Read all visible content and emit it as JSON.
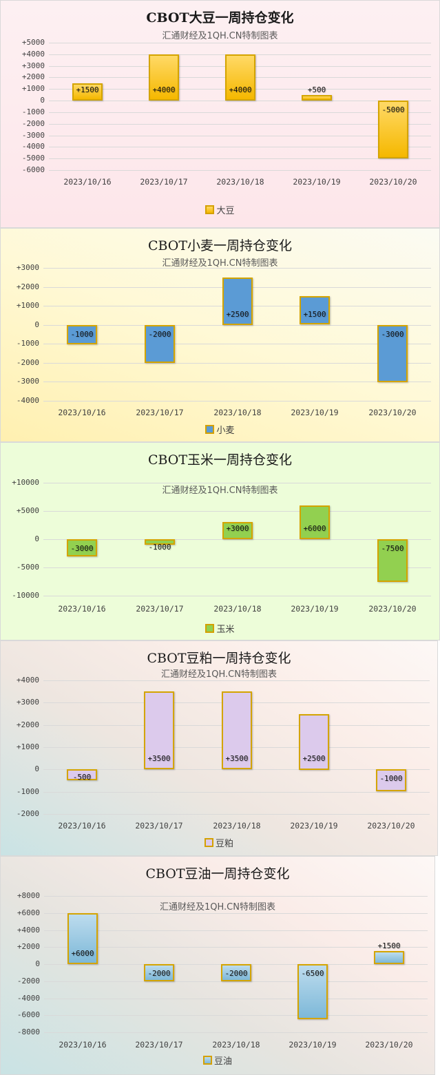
{
  "subtitle": "汇通财经及1QH.CN特制图表",
  "chart_data": [
    {
      "type": "bar",
      "title": "CBOT大豆一周持仓变化",
      "subtitle": "汇通财经及1QH.CN特制图表",
      "legend": "大豆",
      "categories": [
        "2023/10/16",
        "2023/10/17",
        "2023/10/18",
        "2023/10/19",
        "2023/10/20"
      ],
      "values": [
        1500,
        4000,
        4000,
        500,
        -5000
      ],
      "labels": [
        "+1500",
        "+4000",
        "+4000",
        "+500",
        "-5000"
      ],
      "yticks": [
        "+5000",
        "+4000",
        "+3000",
        "+2000",
        "+1000",
        "0",
        "-1000",
        "-2000",
        "-3000",
        "-4000",
        "-5000",
        "-6000"
      ],
      "ylim": [
        -6000,
        5000
      ],
      "grid": true,
      "legend_position": "bottom",
      "bar_color": "#ffc83d",
      "background": "#fde9ec"
    },
    {
      "type": "bar",
      "title": "CBOT小麦一周持仓变化",
      "subtitle": "汇通财经及1QH.CN特制图表",
      "legend": "小麦",
      "categories": [
        "2023/10/16",
        "2023/10/17",
        "2023/10/18",
        "2023/10/19",
        "2023/10/20"
      ],
      "values": [
        -1000,
        -2000,
        2500,
        1500,
        -3000
      ],
      "labels": [
        "-1000",
        "-2000",
        "+2500",
        "+1500",
        "-3000"
      ],
      "yticks": [
        "+3000",
        "+2000",
        "+1000",
        "0",
        "-1000",
        "-2000",
        "-3000",
        "-4000"
      ],
      "ylim": [
        -4000,
        3000
      ],
      "grid": true,
      "legend_position": "bottom",
      "bar_color": "#5b9bd5",
      "background": "#fff8d0"
    },
    {
      "type": "bar",
      "title": "CBOT玉米一周持仓变化",
      "subtitle": "汇通财经及1QH.CN特制图表",
      "legend": "玉米",
      "categories": [
        "2023/10/16",
        "2023/10/17",
        "2023/10/18",
        "2023/10/19",
        "2023/10/20"
      ],
      "values": [
        -3000,
        -1000,
        3000,
        6000,
        -7500
      ],
      "labels": [
        "-3000",
        "-1000",
        "+3000",
        "+6000",
        "-7500"
      ],
      "yticks": [
        "+10000",
        "+5000",
        "0",
        "-5000",
        "-10000"
      ],
      "ylim": [
        -10000,
        10000
      ],
      "grid": true,
      "legend_position": "bottom",
      "bar_color": "#92d050",
      "background": "#edfdd9"
    },
    {
      "type": "bar",
      "title": "CBOT豆粕一周持仓变化",
      "subtitle": "汇通财经及1QH.CN特制图表",
      "legend": "豆粕",
      "categories": [
        "2023/10/16",
        "2023/10/17",
        "2023/10/18",
        "2023/10/19",
        "2023/10/20"
      ],
      "values": [
        -500,
        3500,
        3500,
        2500,
        -1000
      ],
      "labels": [
        "-500",
        "+3500",
        "+3500",
        "+2500",
        "-1000"
      ],
      "yticks": [
        "+4000",
        "+3000",
        "+2000",
        "+1000",
        "0",
        "-1000",
        "-2000"
      ],
      "ylim": [
        -2000,
        4000
      ],
      "grid": true,
      "legend_position": "bottom",
      "bar_color": "#dccaec",
      "background": "#f5ebe8"
    },
    {
      "type": "bar",
      "title": "CBOT豆油一周持仓变化",
      "subtitle": "汇通财经及1QH.CN特制图表",
      "legend": "豆油",
      "categories": [
        "2023/10/16",
        "2023/10/17",
        "2023/10/18",
        "2023/10/19",
        "2023/10/20"
      ],
      "values": [
        6000,
        -2000,
        -2000,
        -6500,
        1500
      ],
      "labels": [
        "+6000",
        "-2000",
        "-2000",
        "-6500",
        "+1500"
      ],
      "yticks": [
        "+8000",
        "+6000",
        "+4000",
        "+2000",
        "0",
        "-2000",
        "-4000",
        "-6000",
        "-8000"
      ],
      "ylim": [
        -8000,
        8000
      ],
      "grid": true,
      "legend_position": "bottom",
      "bar_color": "#8ec4e0",
      "background": "#f5ebe8"
    }
  ]
}
